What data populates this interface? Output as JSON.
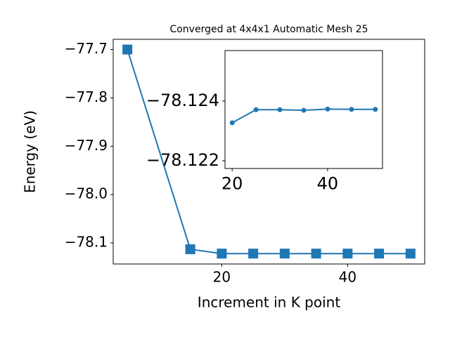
{
  "chart_data": [
    {
      "type": "line",
      "title": "Converged at 4x4x1 Automatic Mesh 25",
      "x_label": "Increment in K point",
      "y_label": "Energy (eV)",
      "x": [
        5,
        15,
        20,
        25,
        30,
        35,
        40,
        45,
        50
      ],
      "values": [
        -77.7,
        -78.113,
        -78.122,
        -78.122,
        -78.122,
        -78.122,
        -78.122,
        -78.122,
        -78.122
      ],
      "color": "#1f77b4",
      "marker": "square",
      "xlim": [
        2.75,
        52.25
      ],
      "xticks": [
        20,
        40
      ],
      "ylim": [
        -78.1435,
        -77.6789
      ],
      "yticks": [
        {
          "value": -77.7,
          "label": "−77.7"
        },
        {
          "value": -77.8,
          "label": "−77.8"
        },
        {
          "value": -77.9,
          "label": "−77.9"
        },
        {
          "value": -78.0,
          "label": "−78.0"
        },
        {
          "value": -78.1,
          "label": "−78.1"
        }
      ]
    },
    {
      "type": "line",
      "x": [
        20,
        25,
        30,
        35,
        40,
        45,
        50
      ],
      "values": [
        -78.12327,
        -78.12371,
        -78.12371,
        -78.12369,
        -78.12373,
        -78.12372,
        -78.12372
      ],
      "color": "#1f77b4",
      "marker": "circle",
      "xlim": [
        18.5,
        51.5
      ],
      "xticks": [
        20,
        40
      ],
      "ylim": [
        -78.12174,
        -78.12569
      ],
      "yticks": [
        {
          "value": -78.124,
          "label": "−78.124"
        },
        {
          "value": -78.122,
          "label": "−78.122"
        }
      ]
    }
  ]
}
